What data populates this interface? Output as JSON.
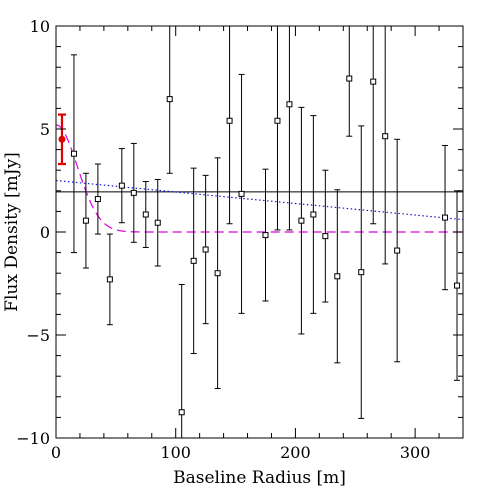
{
  "chart_data": {
    "type": "scatter",
    "title": "",
    "xlabel": "Baseline Radius [m]",
    "ylabel": "Flux Density [mJy]",
    "xlim": [
      0,
      340
    ],
    "ylim": [
      -10,
      10
    ],
    "x_ticks": [
      0,
      100,
      200,
      300
    ],
    "y_ticks": [
      -10,
      -5,
      0,
      5,
      10
    ],
    "x_tick_labels": [
      "0",
      "100",
      "200",
      "300"
    ],
    "y_tick_labels": [
      "−10",
      "−5",
      "0",
      "5",
      "10"
    ],
    "grid": false,
    "legend": "none",
    "series": [
      {
        "marker": "open-square",
        "color": "#000000",
        "points": [
          {
            "x": 15,
            "y": 3.8,
            "err": 4.8
          },
          {
            "x": 25,
            "y": 0.55,
            "err": 2.3
          },
          {
            "x": 35,
            "y": 1.6,
            "err": 1.7
          },
          {
            "x": 45,
            "y": -2.3,
            "err": 2.2
          },
          {
            "x": 55,
            "y": 2.25,
            "err": 1.8
          },
          {
            "x": 65,
            "y": 1.9,
            "err": 2.4
          },
          {
            "x": 75,
            "y": 0.85,
            "err": 1.6
          },
          {
            "x": 85,
            "y": 0.45,
            "err": 2.1
          },
          {
            "x": 95,
            "y": 6.45,
            "err": 3.6
          },
          {
            "x": 105,
            "y": -8.75,
            "err": 6.2
          },
          {
            "x": 115,
            "y": -1.4,
            "err": 4.5
          },
          {
            "x": 125,
            "y": -0.85,
            "err": 3.6
          },
          {
            "x": 135,
            "y": -2.0,
            "err": 5.6
          },
          {
            "x": 145,
            "y": 5.4,
            "err": 5.0
          },
          {
            "x": 155,
            "y": 1.85,
            "err": 5.8
          },
          {
            "x": 175,
            "y": -0.15,
            "err": 3.2
          },
          {
            "x": 185,
            "y": 5.4,
            "err": 5.3
          },
          {
            "x": 195,
            "y": 6.2,
            "err": 6.1
          },
          {
            "x": 205,
            "y": 0.55,
            "err": 5.5
          },
          {
            "x": 215,
            "y": 0.85,
            "err": 4.8
          },
          {
            "x": 225,
            "y": -0.2,
            "err": 3.2
          },
          {
            "x": 235,
            "y": -2.15,
            "err": 4.2
          },
          {
            "x": 245,
            "y": 7.45,
            "err": 2.8
          },
          {
            "x": 255,
            "y": -1.95,
            "err": 7.1
          },
          {
            "x": 265,
            "y": 7.3,
            "err": 6.9
          },
          {
            "x": 275,
            "y": 4.65,
            "err": 6.2
          },
          {
            "x": 285,
            "y": -0.9,
            "err": 5.4
          },
          {
            "x": 325,
            "y": 0.7,
            "err": 3.5
          },
          {
            "x": 335,
            "y": -2.6,
            "err": 4.6
          }
        ]
      },
      {
        "marker": "filled-circle",
        "color": "#e00000",
        "points": [
          {
            "x": 5,
            "y": 4.5,
            "err": 1.2
          }
        ]
      }
    ],
    "lines": [
      {
        "style": "solid",
        "color": "#000000",
        "x": [
          0,
          340
        ],
        "y": [
          1.95,
          1.95
        ]
      },
      {
        "style": "dotted",
        "color": "#1a1acc",
        "x": [
          0,
          340
        ],
        "y": [
          2.5,
          0.6
        ]
      },
      {
        "style": "dashed",
        "color": "#e000e0",
        "function": "gaussian",
        "amplitude": 5.2,
        "sigma": 18,
        "baseline": 0
      }
    ]
  }
}
